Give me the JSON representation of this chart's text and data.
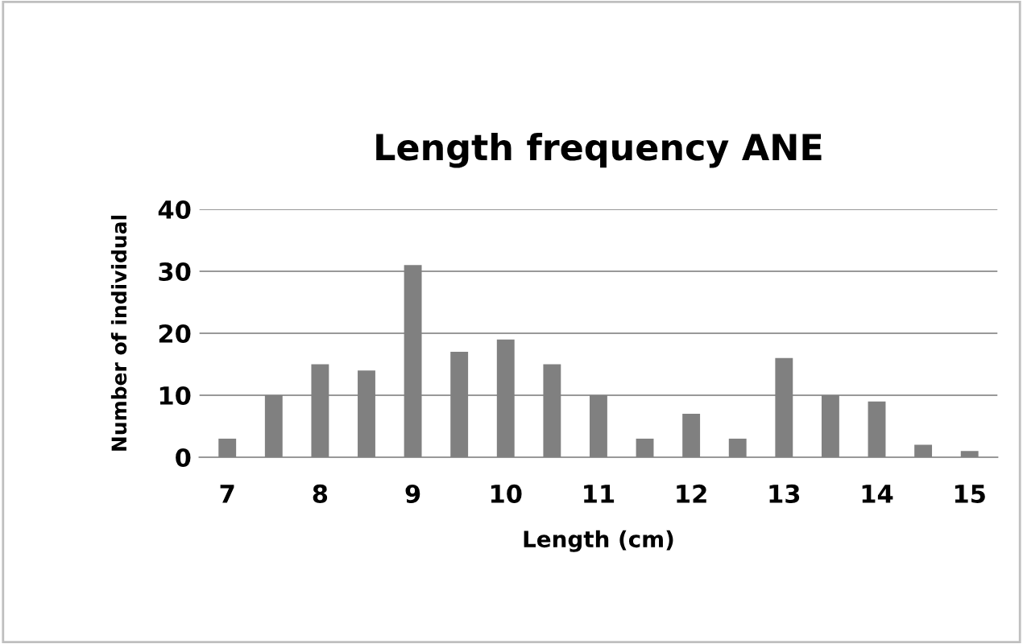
{
  "chart_data": {
    "type": "bar",
    "title": "Length frequency ANE",
    "xlabel": "Length (cm)",
    "ylabel": "Number of individual",
    "categories": [
      "7",
      null,
      "8",
      null,
      "9",
      null,
      "10",
      null,
      "11",
      null,
      "12",
      null,
      "13",
      null,
      "14",
      null,
      "15"
    ],
    "values": [
      3,
      10,
      15,
      14,
      31,
      17,
      19,
      15,
      10,
      3,
      7,
      3,
      16,
      10,
      9,
      2,
      1
    ],
    "color": "#808080",
    "ylim": [
      0,
      40
    ],
    "yticks": [
      0,
      10,
      20,
      30,
      40
    ],
    "grid": "y",
    "legend": false
  }
}
